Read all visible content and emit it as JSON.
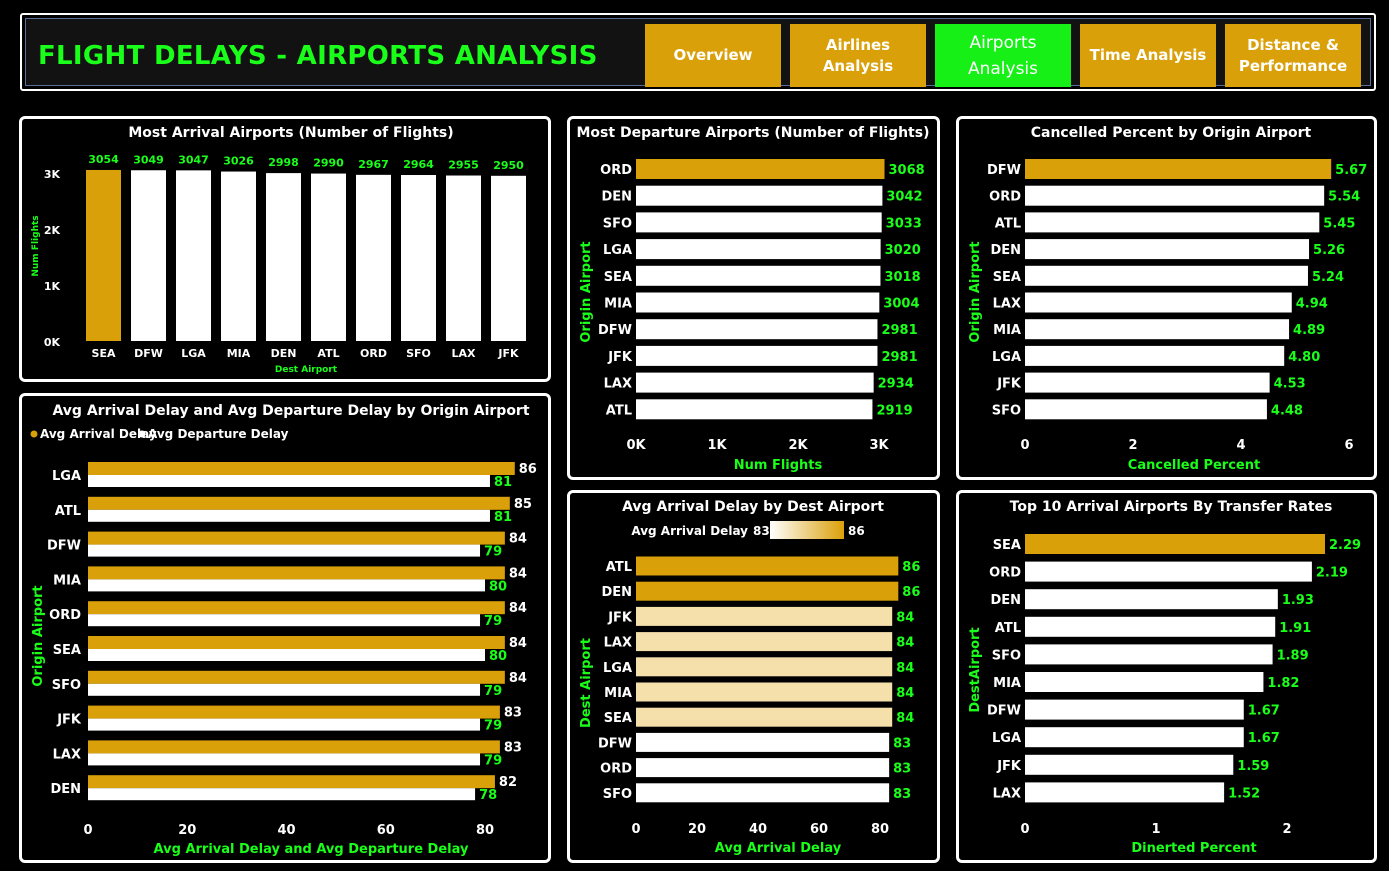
{
  "header": {
    "title": "FLIGHT DELAYS - AIRPORTS ANALYSIS",
    "nav": [
      {
        "label": "Overview",
        "active": false
      },
      {
        "label": "Airlines Analysis",
        "active": false
      },
      {
        "label": "Airports Analysis",
        "active": true
      },
      {
        "label": "Time Analysis",
        "active": false
      },
      {
        "label": "Distance & Performance",
        "active": false
      }
    ]
  },
  "colors": {
    "highlight": "#daa009",
    "bar": "#ffffff",
    "value_text": "#1aff1a",
    "active_nav": "#16f016",
    "gradient_low": "#f5dfab",
    "gradient_high": "#daa009"
  },
  "chart_data": [
    {
      "id": "arrivals",
      "type": "bar",
      "title": "Most Arrival Airports (Number of Flights)",
      "xlabel": "Dest Airport",
      "ylabel": "Num Flights",
      "categories": [
        "SEA",
        "DFW",
        "LGA",
        "MIA",
        "DEN",
        "ATL",
        "ORD",
        "SFO",
        "LAX",
        "JFK"
      ],
      "values": [
        3054,
        3049,
        3047,
        3026,
        2998,
        2990,
        2967,
        2964,
        2955,
        2950
      ],
      "data_labels": [
        "3054",
        "3049",
        "3047",
        "3026",
        "2998",
        "2990",
        "2967",
        "2964",
        "2955",
        "2950"
      ],
      "ylim": [
        0,
        3000
      ],
      "yticks": [
        "0K",
        "1K",
        "2K",
        "3K"
      ],
      "highlight": [
        0
      ]
    },
    {
      "id": "departures",
      "type": "bar",
      "orientation": "horizontal",
      "title": "Most Departure Airports (Number of Flights)",
      "xlabel": "Num Flights",
      "ylabel": "Origin Airport",
      "categories": [
        "ORD",
        "DEN",
        "SFO",
        "LGA",
        "SEA",
        "MIA",
        "DFW",
        "JFK",
        "LAX",
        "ATL"
      ],
      "values": [
        3068,
        3042,
        3033,
        3020,
        3018,
        3004,
        2981,
        2981,
        2934,
        2919
      ],
      "data_labels": [
        "3068",
        "3042",
        "3033",
        "3020",
        "3018",
        "3004",
        "2981",
        "2981",
        "2934",
        "2919"
      ],
      "xlim": [
        0,
        3000
      ],
      "xticks": [
        "0K",
        "1K",
        "2K",
        "3K"
      ],
      "highlight": [
        0
      ]
    },
    {
      "id": "cancelled",
      "type": "bar",
      "orientation": "horizontal",
      "title": "Cancelled Percent by Origin Airport",
      "xlabel": "Cancelled Percent",
      "ylabel": "Origin Airport",
      "categories": [
        "DFW",
        "ORD",
        "ATL",
        "DEN",
        "SEA",
        "LAX",
        "MIA",
        "LGA",
        "JFK",
        "SFO"
      ],
      "values": [
        5.67,
        5.54,
        5.45,
        5.26,
        5.24,
        4.94,
        4.89,
        4.8,
        4.53,
        4.48
      ],
      "data_labels": [
        "5.67",
        "5.54",
        "5.45",
        "5.26",
        "5.24",
        "4.94",
        "4.89",
        "4.80",
        "4.53",
        "4.48"
      ],
      "xlim": [
        0,
        6
      ],
      "xticks": [
        "0",
        "2",
        "4",
        "6"
      ],
      "highlight": [
        0
      ]
    },
    {
      "id": "delays",
      "type": "bar",
      "orientation": "horizontal",
      "title": "Avg Arrival Delay and Avg Departure Delay by Origin Airport",
      "xlabel": "Avg Arrival Delay and Avg Departure Delay",
      "ylabel": "Origin Airport",
      "categories": [
        "LGA",
        "ATL",
        "DFW",
        "MIA",
        "ORD",
        "SEA",
        "SFO",
        "JFK",
        "LAX",
        "DEN"
      ],
      "series": [
        {
          "name": "Avg Arrival Delay",
          "values": [
            86,
            85,
            84,
            84,
            84,
            84,
            84,
            83,
            83,
            82
          ],
          "labels": [
            "86",
            "85",
            "84",
            "84",
            "84",
            "84",
            "84",
            "83",
            "83",
            "82"
          ]
        },
        {
          "name": "Avg Departure Delay",
          "values": [
            81,
            81,
            79,
            80,
            79,
            80,
            79,
            79,
            79,
            78
          ],
          "labels": [
            "81",
            "81",
            "79",
            "80",
            "79",
            "80",
            "79",
            "79",
            "79",
            "78"
          ]
        }
      ],
      "xlim": [
        0,
        80
      ],
      "xticks": [
        "0",
        "20",
        "40",
        "60",
        "80"
      ]
    },
    {
      "id": "arrdelay",
      "type": "bar",
      "orientation": "horizontal",
      "title": "Avg Arrival Delay by Dest Airport",
      "xlabel": "Avg Arrival Delay",
      "ylabel": "Dest Airport",
      "legend": {
        "label": "Avg Arrival Delay",
        "min": "83",
        "max": "86"
      },
      "categories": [
        "ATL",
        "DEN",
        "JFK",
        "LAX",
        "LGA",
        "MIA",
        "SEA",
        "DFW",
        "ORD",
        "SFO"
      ],
      "values": [
        86,
        86,
        84,
        84,
        84,
        84,
        84,
        83,
        83,
        83
      ],
      "data_labels": [
        "86",
        "86",
        "84",
        "84",
        "84",
        "84",
        "84",
        "83",
        "83",
        "83"
      ],
      "xlim": [
        0,
        80
      ],
      "xticks": [
        "0",
        "20",
        "40",
        "60",
        "80"
      ]
    },
    {
      "id": "transfer",
      "type": "bar",
      "orientation": "horizontal",
      "title": "Top 10 Arrival Airports By Transfer Rates",
      "xlabel": "Dinerted Percent",
      "ylabel": "DestAirport",
      "categories": [
        "SEA",
        "ORD",
        "DEN",
        "ATL",
        "SFO",
        "MIA",
        "DFW",
        "LGA",
        "JFK",
        "LAX"
      ],
      "values": [
        2.29,
        2.19,
        1.93,
        1.91,
        1.89,
        1.82,
        1.67,
        1.67,
        1.59,
        1.52
      ],
      "data_labels": [
        "2.29",
        "2.19",
        "1.93",
        "1.91",
        "1.89",
        "1.82",
        "1.67",
        "1.67",
        "1.59",
        "1.52"
      ],
      "xlim": [
        0,
        2
      ],
      "xticks": [
        "0",
        "1",
        "2"
      ],
      "highlight": [
        0
      ]
    }
  ]
}
